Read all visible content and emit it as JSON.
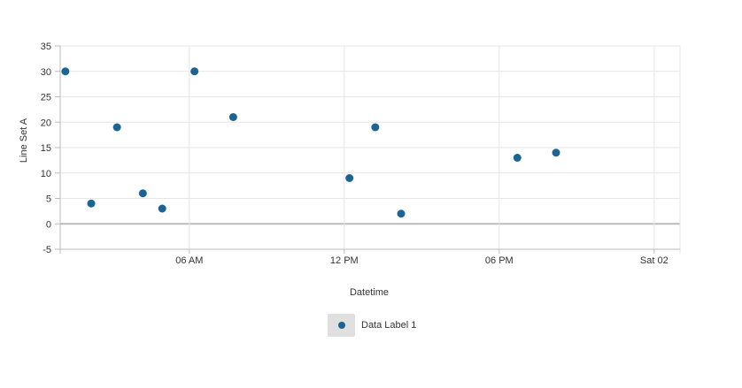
{
  "chart_data": {
    "type": "scatter",
    "xlabel": "Datetime",
    "ylabel": "Line Set A",
    "ylim": [
      -5,
      35
    ],
    "y_ticks": [
      -5,
      0,
      5,
      10,
      15,
      20,
      25,
      30,
      35
    ],
    "x_range_hours": [
      1,
      25
    ],
    "x_ticks": [
      {
        "hour": 6,
        "label": "06 AM"
      },
      {
        "hour": 12,
        "label": "12 PM"
      },
      {
        "hour": 18,
        "label": "06 PM"
      },
      {
        "hour": 24,
        "label": "Sat 02"
      }
    ],
    "grid": true,
    "legend": "bottom-center",
    "series": [
      {
        "name": "Data Label 1",
        "color": "#1a6496",
        "points": [
          {
            "x": "01:12",
            "y": 30
          },
          {
            "x": "02:12",
            "y": 4
          },
          {
            "x": "03:12",
            "y": 19
          },
          {
            "x": "04:12",
            "y": 6
          },
          {
            "x": "04:57",
            "y": 3
          },
          {
            "x": "06:12",
            "y": 30
          },
          {
            "x": "07:42",
            "y": 21
          },
          {
            "x": "12:12",
            "y": 9
          },
          {
            "x": "13:12",
            "y": 19
          },
          {
            "x": "14:12",
            "y": 2
          },
          {
            "x": "18:42",
            "y": 13
          },
          {
            "x": "20:12",
            "y": 14
          }
        ]
      }
    ]
  }
}
